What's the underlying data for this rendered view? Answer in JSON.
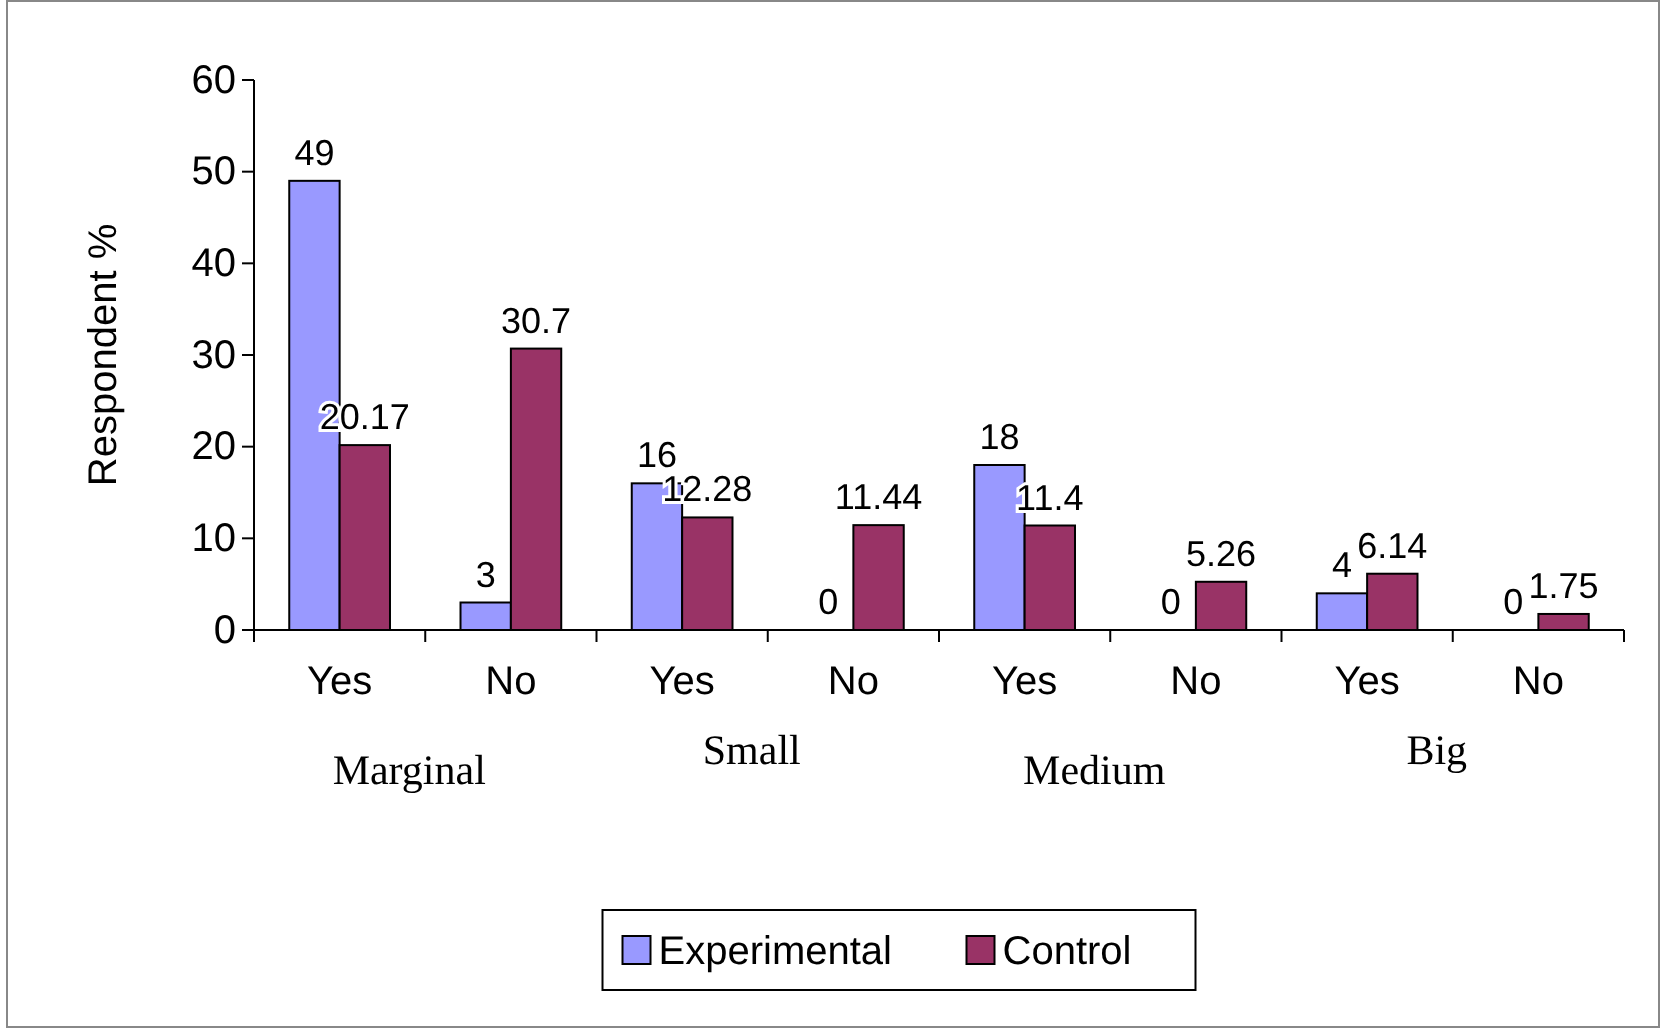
{
  "chart_data": {
    "type": "bar",
    "ylabel": "Respondent %",
    "categories": [
      "Yes",
      "No",
      "Yes",
      "No",
      "Yes",
      "No",
      "Yes",
      "No"
    ],
    "series": [
      {
        "name": "Experimental",
        "color": "#9999ff",
        "values": [
          49,
          3,
          16,
          0,
          18,
          0,
          4,
          0
        ]
      },
      {
        "name": "Control",
        "color": "#993366",
        "values": [
          20.17,
          30.7,
          12.28,
          11.44,
          11.4,
          5.26,
          6.14,
          1.75
        ]
      }
    ],
    "ylim": [
      0,
      60
    ],
    "yticks": [
      0,
      10,
      20,
      30,
      40,
      50,
      60
    ],
    "grid": false,
    "data_labels": true,
    "legend": "bottom",
    "annotations": [
      "Marginal",
      "Small",
      "Medium",
      "Big"
    ]
  }
}
